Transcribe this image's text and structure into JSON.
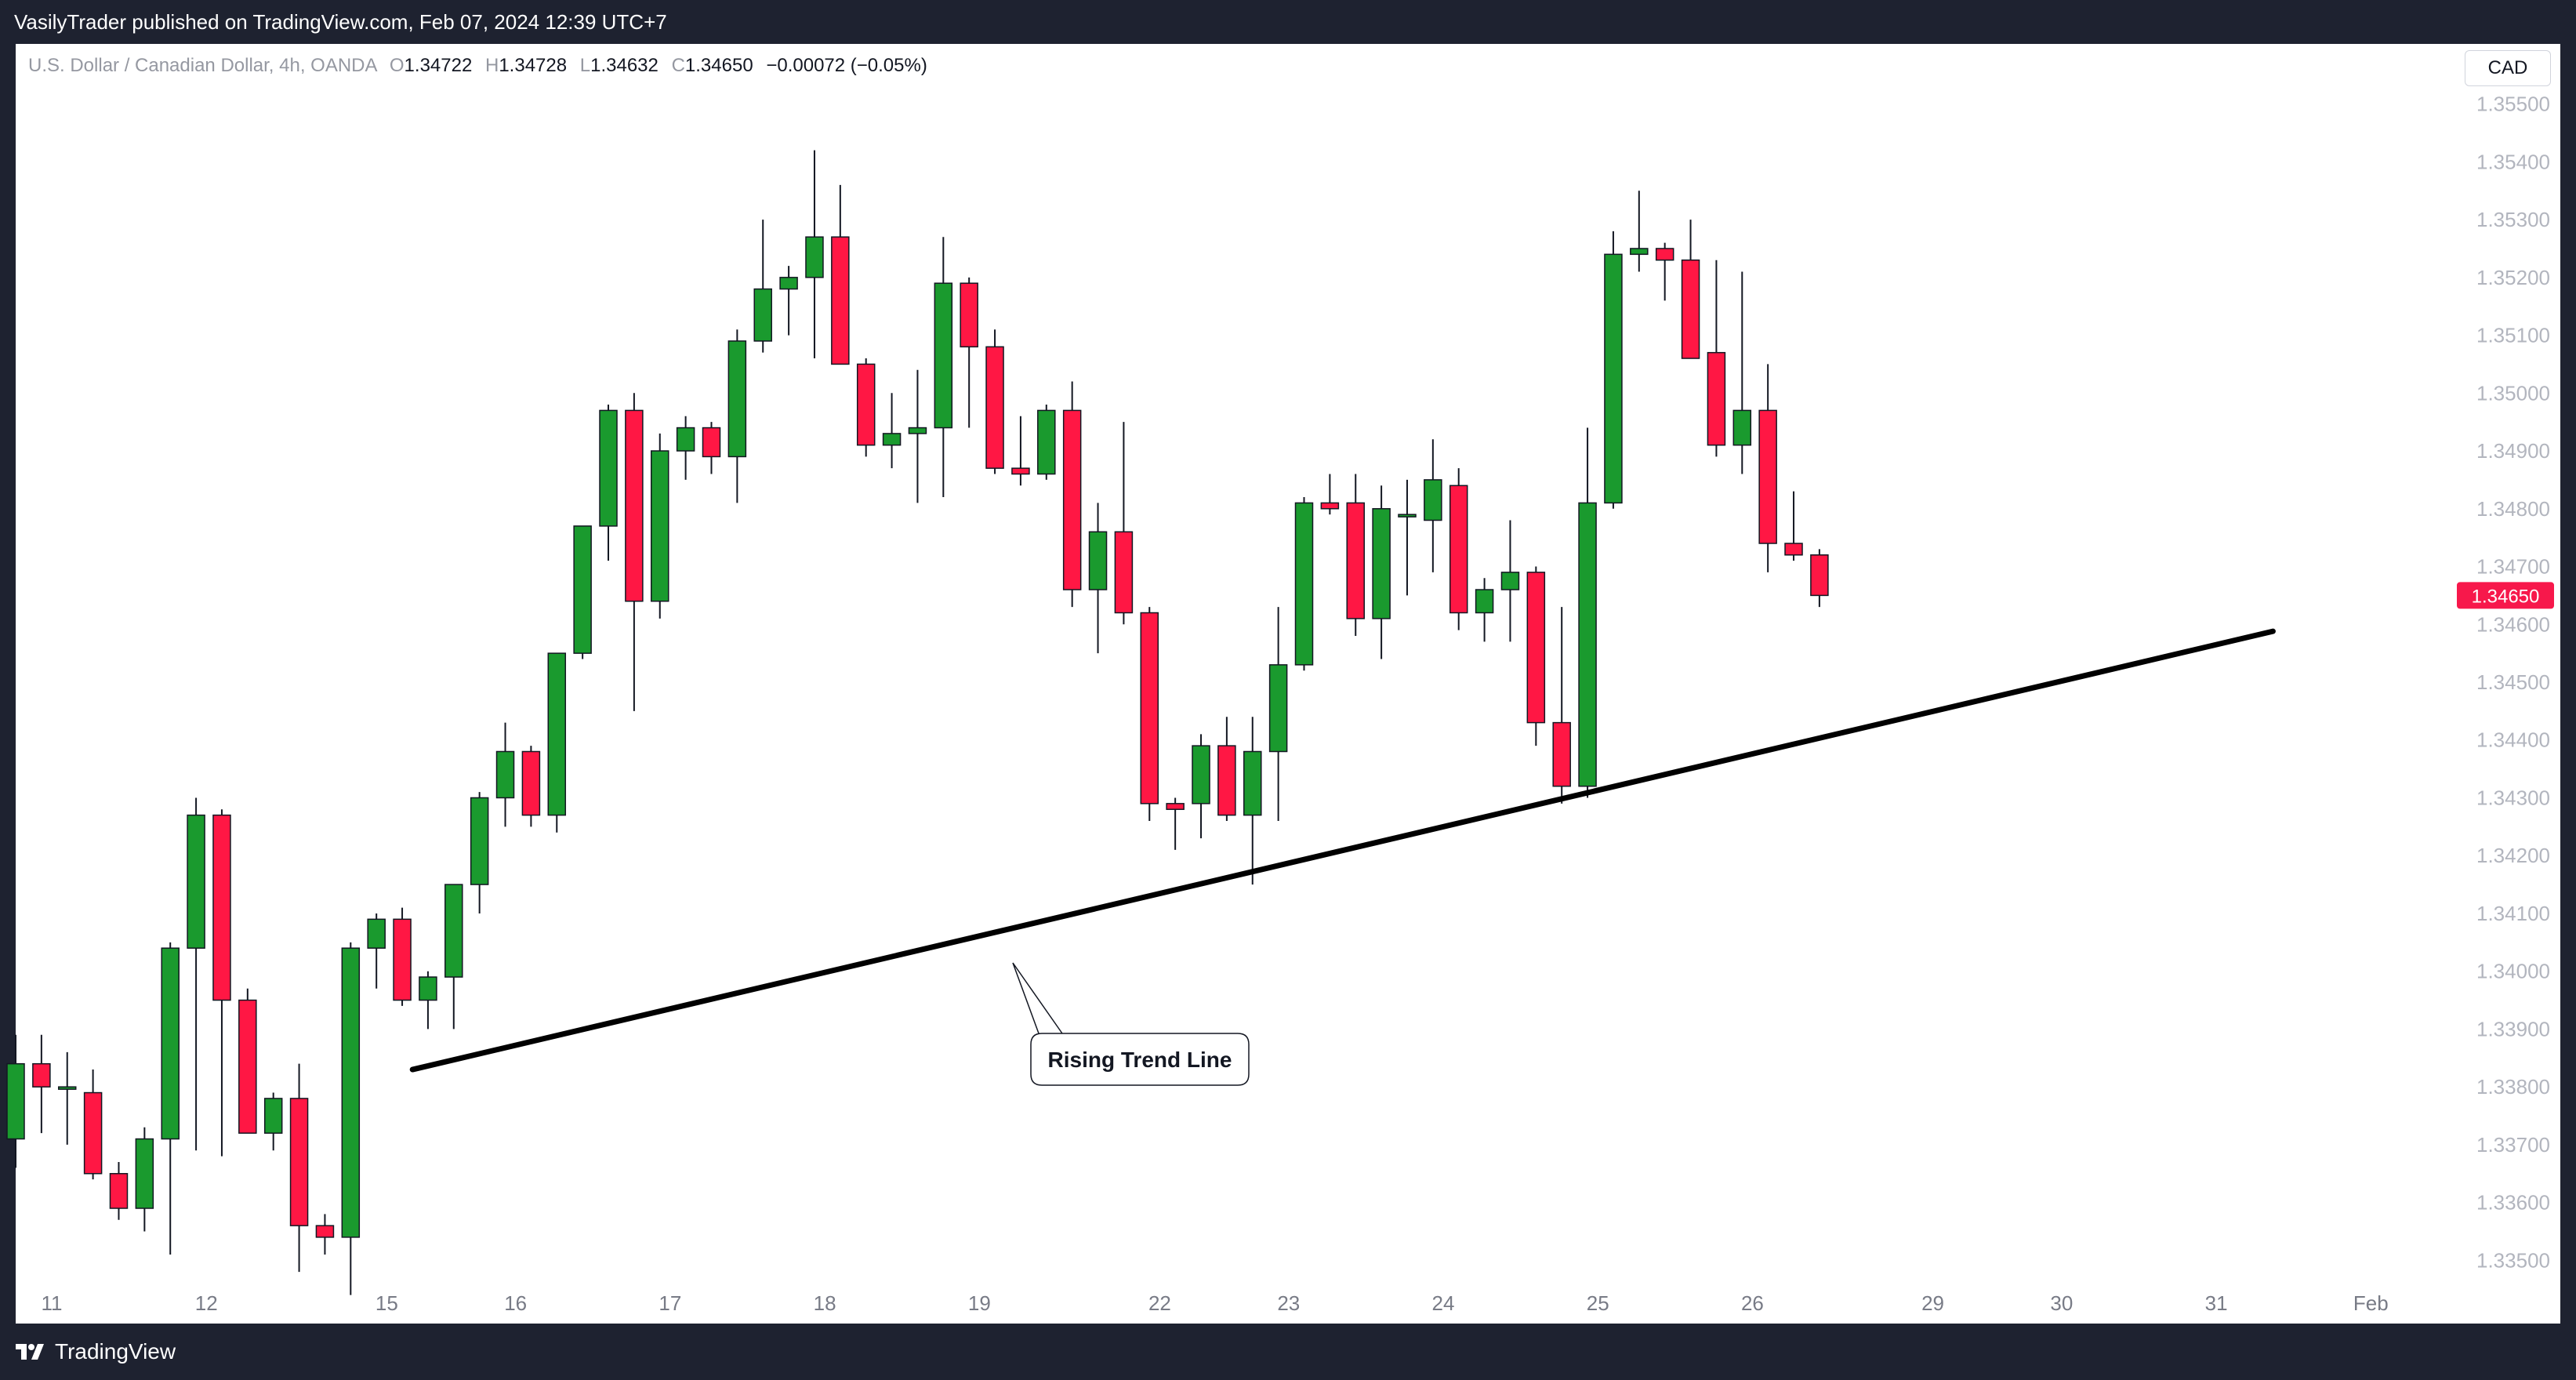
{
  "header": {
    "published_text": "VasilyTrader published on TradingView.com, Feb 07, 2024 12:39 UTC+7"
  },
  "footer": {
    "brand": "TradingView"
  },
  "legend": {
    "symbol": "U.S. Dollar / Canadian Dollar, 4h, OANDA",
    "o_label": "O",
    "o_value": "1.34722",
    "h_label": "H",
    "h_value": "1.34728",
    "l_label": "L",
    "l_value": "1.34632",
    "c_label": "C",
    "c_value": "1.34650",
    "change": "−0.00072 (−0.05%)"
  },
  "currency_button": "CAD",
  "colors": {
    "up": "#089981",
    "up_body": "#1a9a2e",
    "down": "#f23645",
    "down_body": "#ff1744",
    "wick": "#131722",
    "trend": "#000000",
    "price_tag": "#f7184b"
  },
  "chart_data": {
    "type": "candlestick",
    "ylim": [
      1.3343,
      1.3565
    ],
    "y_ticks": [
      "1.35500",
      "1.35400",
      "1.35300",
      "1.35200",
      "1.35100",
      "1.35000",
      "1.34900",
      "1.34800",
      "1.34700",
      "1.34600",
      "1.34500",
      "1.34400",
      "1.34300",
      "1.34200",
      "1.34100",
      "1.34000",
      "1.33900",
      "1.33800",
      "1.33700",
      "1.33600",
      "1.33500"
    ],
    "x_ticks": [
      {
        "label": "11",
        "bar": 1.4
      },
      {
        "label": "12",
        "bar": 7.4
      },
      {
        "label": "15",
        "bar": 14.4
      },
      {
        "label": "16",
        "bar": 19.4
      },
      {
        "label": "17",
        "bar": 25.4
      },
      {
        "label": "18",
        "bar": 31.4
      },
      {
        "label": "19",
        "bar": 37.4
      },
      {
        "label": "22",
        "bar": 44.4
      },
      {
        "label": "23",
        "bar": 49.4
      },
      {
        "label": "24",
        "bar": 55.4
      },
      {
        "label": "25",
        "bar": 61.4
      },
      {
        "label": "26",
        "bar": 67.4
      },
      {
        "label": "29",
        "bar": 74.4
      },
      {
        "label": "30",
        "bar": 79.4
      },
      {
        "label": "31",
        "bar": 85.4
      },
      {
        "label": "Feb",
        "bar": 91.4
      }
    ],
    "current_price": "1.34650",
    "ohlc": [
      [
        1.3371,
        1.3389,
        1.3366,
        1.3384
      ],
      [
        1.3384,
        1.3389,
        1.3372,
        1.338
      ],
      [
        1.338,
        1.3386,
        1.337,
        1.338
      ],
      [
        1.3379,
        1.3383,
        1.3364,
        1.3365
      ],
      [
        1.3365,
        1.3367,
        1.3357,
        1.3359
      ],
      [
        1.3359,
        1.3373,
        1.3355,
        1.3371
      ],
      [
        1.3371,
        1.3405,
        1.3351,
        1.3404
      ],
      [
        1.3404,
        1.343,
        1.3369,
        1.3427
      ],
      [
        1.3427,
        1.3428,
        1.3368,
        1.3395
      ],
      [
        1.3395,
        1.3397,
        1.3372,
        1.3372
      ],
      [
        1.3372,
        1.3379,
        1.3369,
        1.3378
      ],
      [
        1.3378,
        1.3384,
        1.3348,
        1.3356
      ],
      [
        1.3356,
        1.3358,
        1.3351,
        1.3354
      ],
      [
        1.3354,
        1.3405,
        1.3344,
        1.3404
      ],
      [
        1.3404,
        1.341,
        1.3397,
        1.3409
      ],
      [
        1.3409,
        1.3411,
        1.3394,
        1.3395
      ],
      [
        1.3395,
        1.34,
        1.339,
        1.3399
      ],
      [
        1.3399,
        1.3415,
        1.339,
        1.3415
      ],
      [
        1.3415,
        1.3431,
        1.341,
        1.343
      ],
      [
        1.343,
        1.3443,
        1.3425,
        1.3438
      ],
      [
        1.3438,
        1.3439,
        1.3425,
        1.3427
      ],
      [
        1.3427,
        1.3455,
        1.3424,
        1.3455
      ],
      [
        1.3455,
        1.3476,
        1.3454,
        1.3477
      ],
      [
        1.3477,
        1.3498,
        1.3471,
        1.3497
      ],
      [
        1.3497,
        1.35,
        1.3445,
        1.3464
      ],
      [
        1.3464,
        1.3493,
        1.3461,
        1.349
      ],
      [
        1.349,
        1.3496,
        1.3485,
        1.3494
      ],
      [
        1.3494,
        1.3495,
        1.3486,
        1.3489
      ],
      [
        1.3489,
        1.3511,
        1.3481,
        1.3509
      ],
      [
        1.3509,
        1.353,
        1.3507,
        1.3518
      ],
      [
        1.3518,
        1.3522,
        1.351,
        1.352
      ],
      [
        1.352,
        1.3542,
        1.3506,
        1.3527
      ],
      [
        1.3527,
        1.3536,
        1.3505,
        1.3505
      ],
      [
        1.3505,
        1.3506,
        1.3489,
        1.3491
      ],
      [
        1.3491,
        1.35,
        1.3487,
        1.3493
      ],
      [
        1.3493,
        1.3504,
        1.3481,
        1.3494
      ],
      [
        1.3494,
        1.3527,
        1.3482,
        1.3519
      ],
      [
        1.3519,
        1.352,
        1.3494,
        1.3508
      ],
      [
        1.3508,
        1.3511,
        1.3486,
        1.3487
      ],
      [
        1.3487,
        1.3496,
        1.3484,
        1.3486
      ],
      [
        1.3486,
        1.3498,
        1.3485,
        1.3497
      ],
      [
        1.3497,
        1.3502,
        1.3463,
        1.3466
      ],
      [
        1.3466,
        1.3481,
        1.3455,
        1.3476
      ],
      [
        1.3476,
        1.3495,
        1.346,
        1.3462
      ],
      [
        1.3462,
        1.3463,
        1.3426,
        1.3429
      ],
      [
        1.3429,
        1.343,
        1.3421,
        1.3428
      ],
      [
        1.3429,
        1.3441,
        1.3423,
        1.3439
      ],
      [
        1.3439,
        1.3444,
        1.3426,
        1.3427
      ],
      [
        1.3427,
        1.3444,
        1.3415,
        1.3438
      ],
      [
        1.3438,
        1.3463,
        1.3426,
        1.3453
      ],
      [
        1.3453,
        1.3482,
        1.3452,
        1.3481
      ],
      [
        1.3481,
        1.3486,
        1.3479,
        1.348
      ],
      [
        1.3481,
        1.3486,
        1.3458,
        1.3461
      ],
      [
        1.3461,
        1.3484,
        1.3454,
        1.348
      ],
      [
        1.3479,
        1.3485,
        1.3465,
        1.3479
      ],
      [
        1.3478,
        1.3492,
        1.3469,
        1.3485
      ],
      [
        1.3484,
        1.3487,
        1.3459,
        1.3462
      ],
      [
        1.3462,
        1.3468,
        1.3457,
        1.3466
      ],
      [
        1.3466,
        1.3478,
        1.3457,
        1.3469
      ],
      [
        1.3469,
        1.347,
        1.3439,
        1.3443
      ],
      [
        1.3443,
        1.3463,
        1.3429,
        1.3432
      ],
      [
        1.3432,
        1.3494,
        1.343,
        1.3481
      ],
      [
        1.3481,
        1.3528,
        1.348,
        1.3524
      ],
      [
        1.3524,
        1.3535,
        1.3521,
        1.3525
      ],
      [
        1.3525,
        1.3526,
        1.3516,
        1.3523
      ],
      [
        1.3523,
        1.353,
        1.3506,
        1.3506
      ],
      [
        1.3507,
        1.3523,
        1.3489,
        1.3491
      ],
      [
        1.3491,
        1.3521,
        1.3486,
        1.3497
      ],
      [
        1.3497,
        1.3505,
        1.3469,
        1.3474
      ],
      [
        1.3474,
        1.3483,
        1.3471,
        1.3472
      ],
      [
        1.3472,
        1.3473,
        1.3463,
        1.3465
      ]
    ],
    "trend_line": {
      "label": "Rising Trend Line",
      "start": {
        "bar": 15.4,
        "price": 1.3383
      },
      "end": {
        "bar": 87.6,
        "price": 1.34588
      }
    }
  }
}
